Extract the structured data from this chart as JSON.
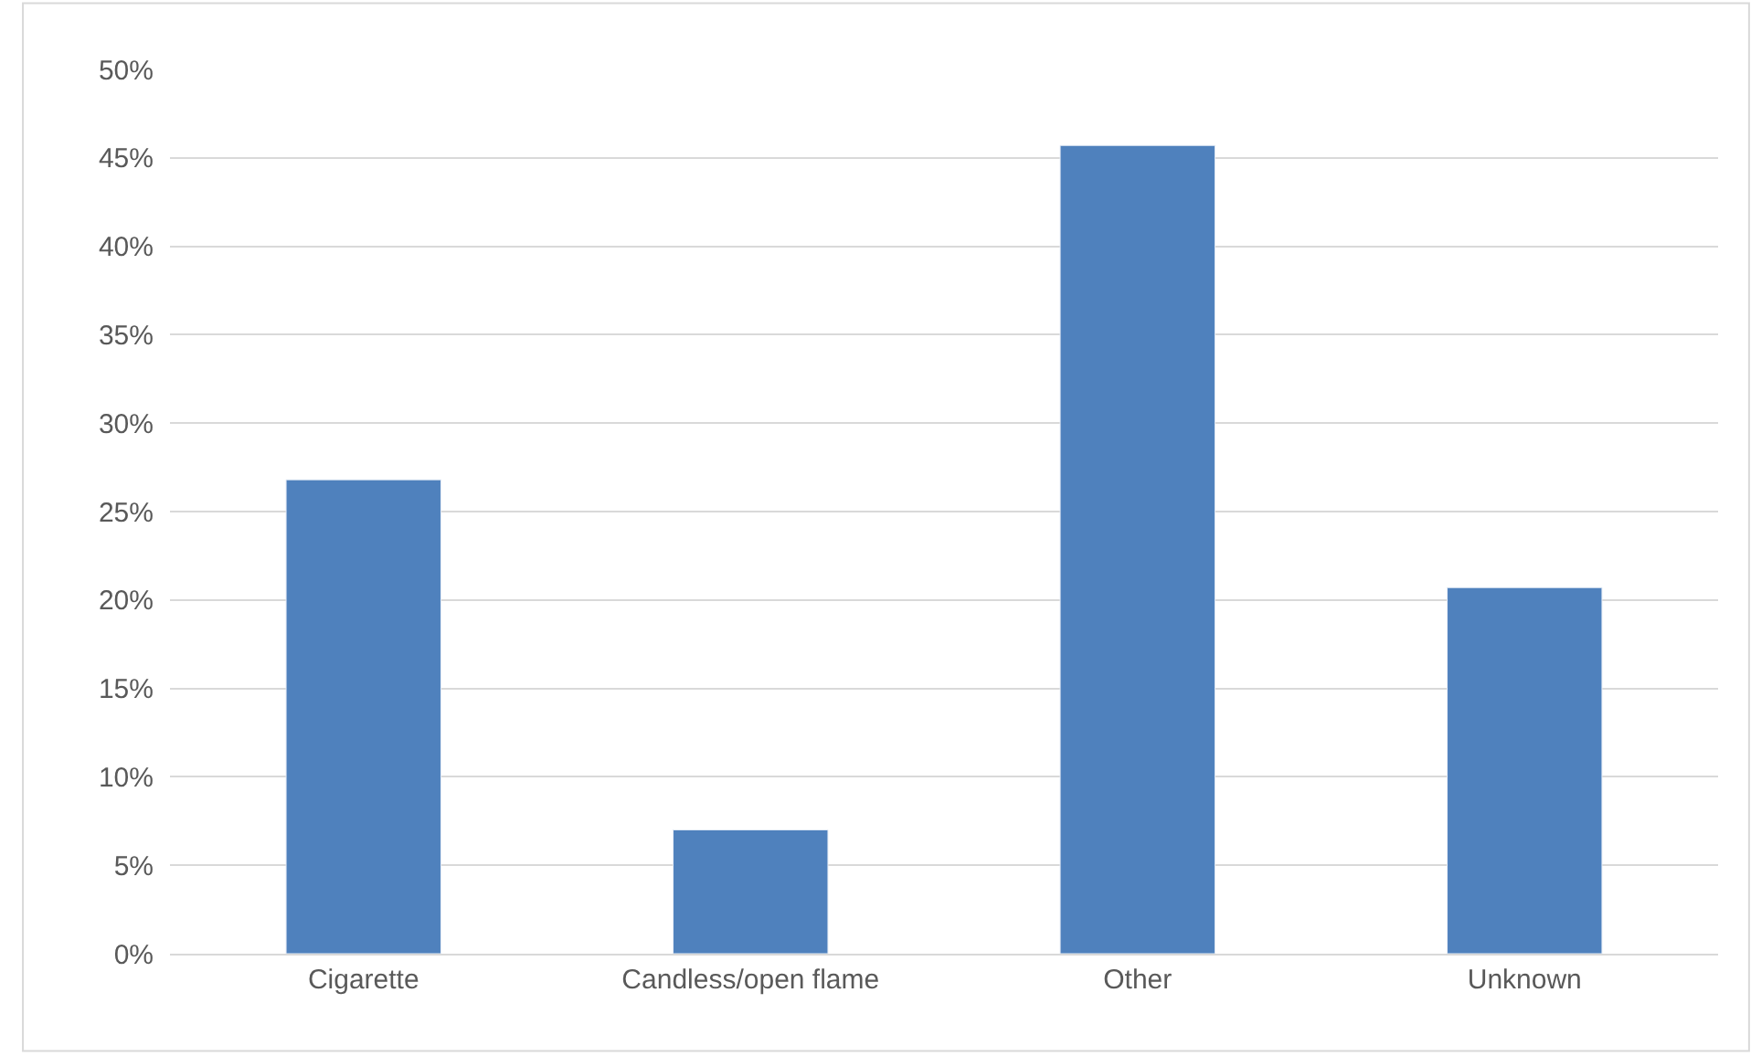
{
  "chart_data": {
    "type": "bar",
    "categories": [
      "Cigarette",
      "Candless/open flame",
      "Other",
      "Unknown"
    ],
    "values": [
      26.8,
      7.0,
      45.7,
      20.7
    ],
    "color": "#4f81bd",
    "ylim": [
      0,
      50
    ],
    "yticks": [
      {
        "value": 0,
        "label": "0%"
      },
      {
        "value": 5,
        "label": "5%"
      },
      {
        "value": 10,
        "label": "10%"
      },
      {
        "value": 15,
        "label": "15%"
      },
      {
        "value": 20,
        "label": "20%"
      },
      {
        "value": 25,
        "label": "25%"
      },
      {
        "value": 30,
        "label": "30%"
      },
      {
        "value": 35,
        "label": "35%"
      },
      {
        "value": 40,
        "label": "40%"
      },
      {
        "value": 45,
        "label": "45%"
      },
      {
        "value": 50,
        "label": "50%"
      }
    ],
    "grid": "y"
  }
}
